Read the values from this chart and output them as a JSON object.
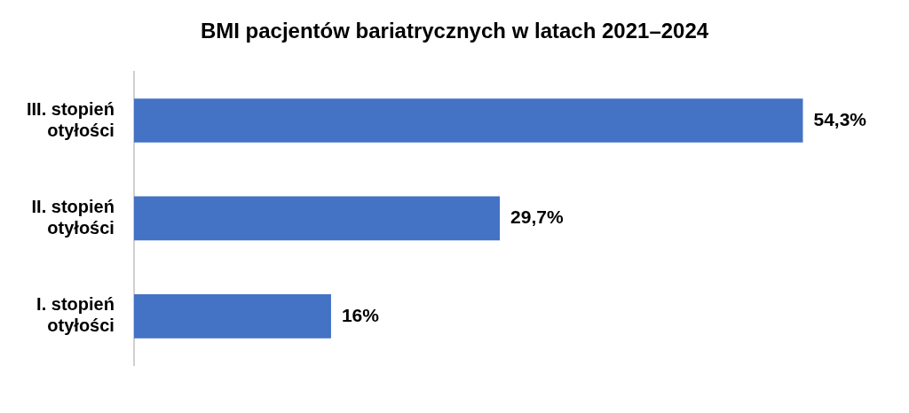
{
  "chart_data": {
    "type": "bar",
    "orientation": "horizontal",
    "title": "BMI pacjentów bariatrycznych w latach 2021–2024",
    "categories": [
      "III. stopień otyłości",
      "II. stopień otyłości",
      "I. stopień otyłości"
    ],
    "values": [
      54.3,
      29.7,
      16
    ],
    "value_labels": [
      "54,3%",
      "29,7%",
      "16%"
    ],
    "color": "#4472c4"
  }
}
